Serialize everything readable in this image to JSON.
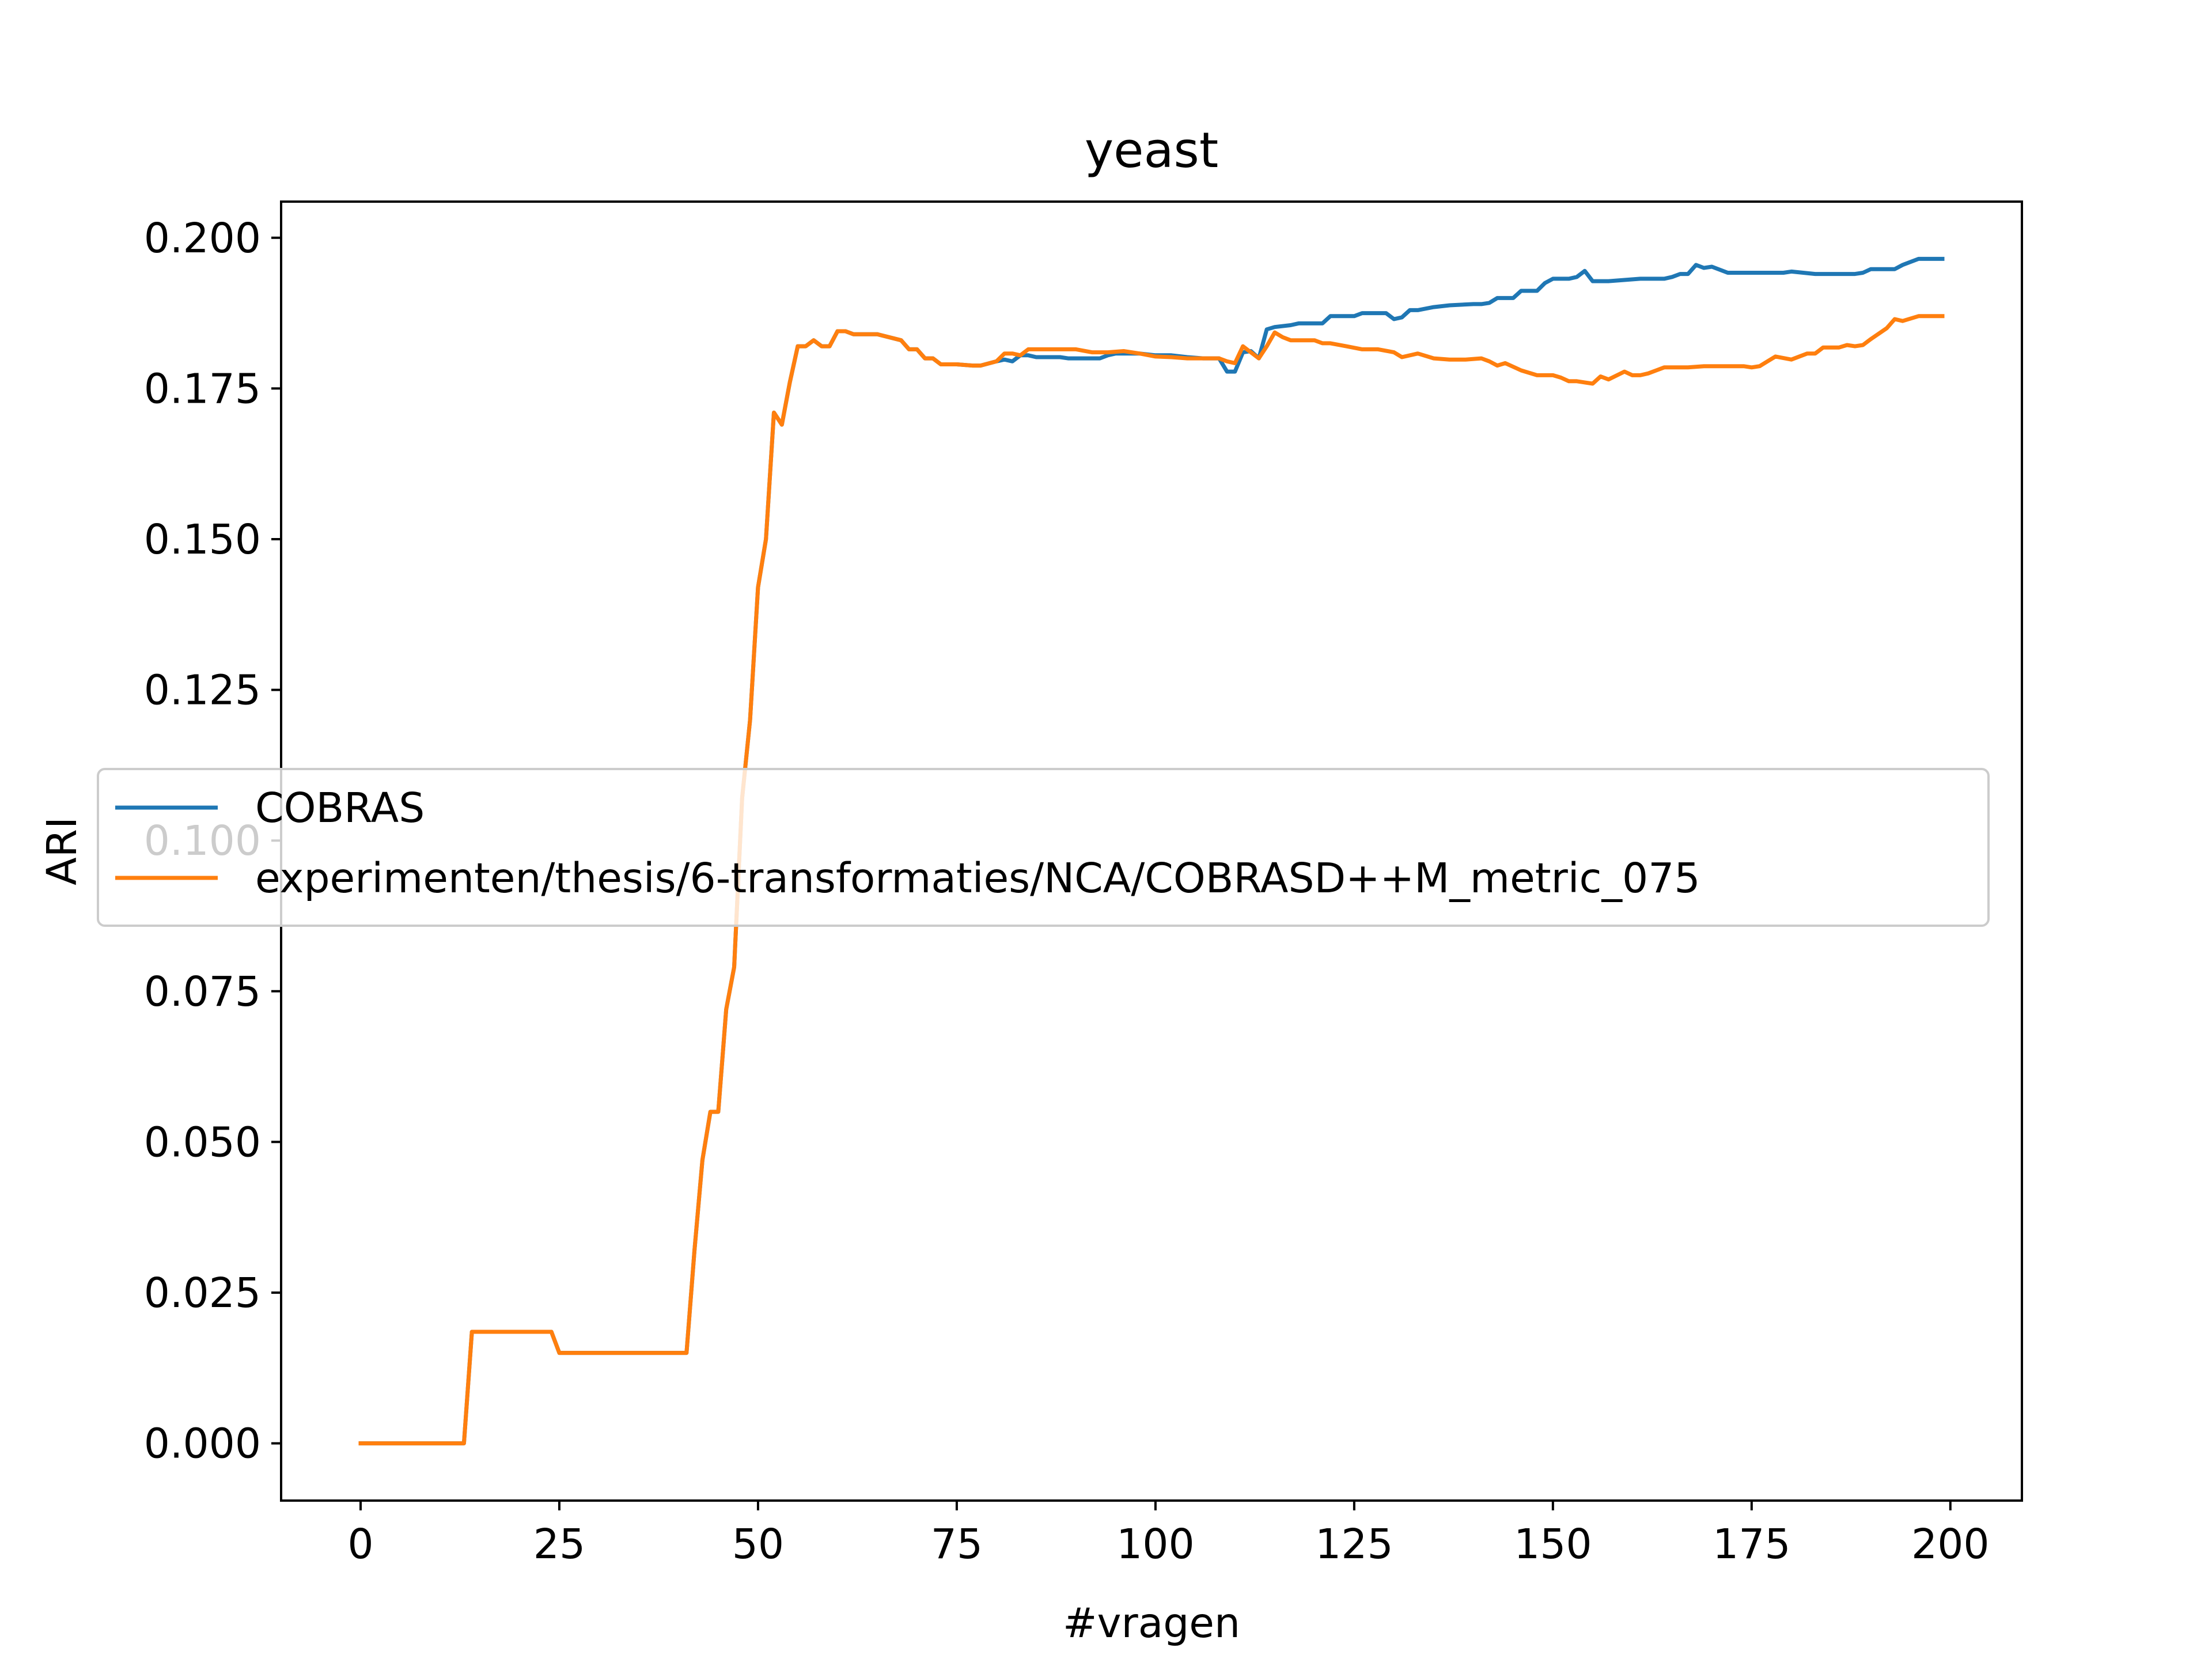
{
  "chart_data": {
    "type": "line",
    "title": "yeast",
    "xlabel": "#vragen",
    "ylabel": "ARI",
    "xlim": [
      -10,
      209
    ],
    "ylim": [
      -0.0095,
      0.206
    ],
    "xticks": [
      0,
      25,
      50,
      75,
      100,
      125,
      150,
      175,
      200
    ],
    "xtick_labels": [
      "0",
      "25",
      "50",
      "75",
      "100",
      "125",
      "150",
      "175",
      "200"
    ],
    "yticks": [
      0.0,
      0.025,
      0.05,
      0.075,
      0.1,
      0.125,
      0.15,
      0.175,
      0.2
    ],
    "ytick_labels": [
      "0.000",
      "0.025",
      "0.050",
      "0.075",
      "0.100",
      "0.125",
      "0.150",
      "0.175",
      "0.200"
    ],
    "grid": false,
    "legend_position": "center-left",
    "series": [
      {
        "name": "COBRAS",
        "color": "#1f77b4",
        "x": [
          0,
          13,
          14,
          24,
          25,
          41,
          42,
          43,
          44,
          45,
          46,
          47,
          48,
          49,
          50,
          51,
          52,
          53,
          54,
          55,
          56,
          57,
          58,
          59,
          60,
          61,
          62,
          65,
          68,
          69,
          70,
          71,
          72,
          73,
          74,
          75,
          77,
          78,
          80,
          81,
          82,
          83,
          84,
          85,
          86,
          87,
          88,
          89,
          90,
          91,
          92,
          93,
          94,
          95,
          96,
          98,
          100,
          102,
          104,
          106,
          108,
          109,
          110,
          111,
          112,
          113,
          114,
          115,
          117,
          118,
          119,
          121,
          122,
          123,
          125,
          126,
          128,
          129,
          130,
          131,
          132,
          133,
          135,
          137,
          140,
          141,
          142,
          143,
          145,
          146,
          148,
          149,
          150,
          151,
          152,
          153,
          154,
          155,
          156,
          157,
          159,
          161,
          163,
          164,
          165,
          166,
          167,
          168,
          169,
          170,
          172,
          175,
          177,
          179,
          180,
          183,
          185,
          187,
          188,
          189,
          190,
          192,
          193,
          194,
          196,
          199
        ],
        "y": [
          0.0,
          0.0,
          0.0185,
          0.0185,
          0.015,
          0.015,
          0.032,
          0.047,
          0.055,
          0.055,
          0.072,
          0.079,
          0.107,
          0.12,
          0.142,
          0.15,
          0.171,
          0.169,
          0.176,
          0.182,
          0.182,
          0.183,
          0.182,
          0.182,
          0.1845,
          0.1845,
          0.184,
          0.184,
          0.183,
          0.1815,
          0.1815,
          0.18,
          0.18,
          0.179,
          0.179,
          0.179,
          0.1788,
          0.1788,
          0.1795,
          0.1798,
          0.1795,
          0.1805,
          0.1805,
          0.1802,
          0.1802,
          0.1802,
          0.1802,
          0.18,
          0.18,
          0.18,
          0.18,
          0.18,
          0.1805,
          0.1808,
          0.1808,
          0.1808,
          0.1805,
          0.1805,
          0.1802,
          0.18,
          0.18,
          0.1778,
          0.1778,
          0.181,
          0.1812,
          0.18,
          0.1848,
          0.1852,
          0.1855,
          0.1858,
          0.1858,
          0.1858,
          0.187,
          0.187,
          0.187,
          0.1875,
          0.1875,
          0.1875,
          0.1865,
          0.1868,
          0.188,
          0.188,
          0.1885,
          0.1888,
          0.189,
          0.189,
          0.1892,
          0.19,
          0.19,
          0.1912,
          0.1912,
          0.1925,
          0.1932,
          0.1932,
          0.1932,
          0.1935,
          0.1945,
          0.1928,
          0.1928,
          0.1928,
          0.193,
          0.1932,
          0.1932,
          0.1932,
          0.1935,
          0.194,
          0.194,
          0.1955,
          0.195,
          0.1952,
          0.1942,
          0.1942,
          0.1942,
          0.1942,
          0.1944,
          0.194,
          0.194,
          0.194,
          0.194,
          0.1942,
          0.1948,
          0.1948,
          0.1948,
          0.1955,
          0.1965,
          0.1965
        ]
      },
      {
        "name": "experimenten/thesis/6-transformaties/NCA/COBRASD++M_metric_075",
        "color": "#ff7f0e",
        "x": [
          0,
          13,
          14,
          24,
          25,
          41,
          42,
          43,
          44,
          45,
          46,
          47,
          48,
          49,
          50,
          51,
          52,
          53,
          54,
          55,
          56,
          57,
          58,
          59,
          60,
          61,
          62,
          65,
          68,
          69,
          70,
          71,
          72,
          73,
          74,
          75,
          77,
          78,
          80,
          81,
          82,
          83,
          84,
          85,
          87,
          90,
          92,
          94,
          96,
          98,
          100,
          102,
          104,
          106,
          108,
          109,
          110,
          111,
          112,
          113,
          114,
          115,
          116,
          117,
          119,
          120,
          121,
          122,
          124,
          126,
          128,
          130,
          131,
          133,
          135,
          137,
          139,
          141,
          142,
          143,
          144,
          146,
          148,
          150,
          151,
          152,
          153,
          154,
          155,
          156,
          157,
          159,
          160,
          161,
          162,
          163,
          164,
          165,
          167,
          169,
          171,
          173,
          174,
          175,
          176,
          177,
          178,
          180,
          182,
          183,
          184,
          186,
          187,
          188,
          189,
          190,
          192,
          193,
          194,
          196,
          199
        ],
        "y": [
          0.0,
          0.0,
          0.0185,
          0.0185,
          0.015,
          0.015,
          0.032,
          0.047,
          0.055,
          0.055,
          0.072,
          0.079,
          0.107,
          0.12,
          0.142,
          0.15,
          0.171,
          0.169,
          0.176,
          0.182,
          0.182,
          0.183,
          0.182,
          0.182,
          0.1845,
          0.1845,
          0.184,
          0.184,
          0.183,
          0.1815,
          0.1815,
          0.18,
          0.18,
          0.179,
          0.179,
          0.179,
          0.1788,
          0.1788,
          0.1795,
          0.1808,
          0.1808,
          0.1805,
          0.1815,
          0.1815,
          0.1815,
          0.1815,
          0.181,
          0.181,
          0.1812,
          0.1808,
          0.1803,
          0.1802,
          0.18,
          0.18,
          0.18,
          0.1795,
          0.1792,
          0.182,
          0.181,
          0.18,
          0.182,
          0.1843,
          0.1835,
          0.183,
          0.183,
          0.183,
          0.1825,
          0.1825,
          0.182,
          0.1815,
          0.1815,
          0.181,
          0.1802,
          0.1808,
          0.18,
          0.1798,
          0.1798,
          0.18,
          0.1795,
          0.1788,
          0.1792,
          0.178,
          0.1772,
          0.1772,
          0.1768,
          0.1762,
          0.1762,
          0.176,
          0.1758,
          0.177,
          0.1765,
          0.1778,
          0.1772,
          0.1772,
          0.1775,
          0.178,
          0.1785,
          0.1785,
          0.1785,
          0.1787,
          0.1787,
          0.1787,
          0.1787,
          0.1785,
          0.1787,
          0.1795,
          0.1803,
          0.1798,
          0.1808,
          0.1808,
          0.1818,
          0.1818,
          0.1822,
          0.182,
          0.1822,
          0.1832,
          0.185,
          0.1865,
          0.1862,
          0.187,
          0.187
        ]
      }
    ]
  }
}
